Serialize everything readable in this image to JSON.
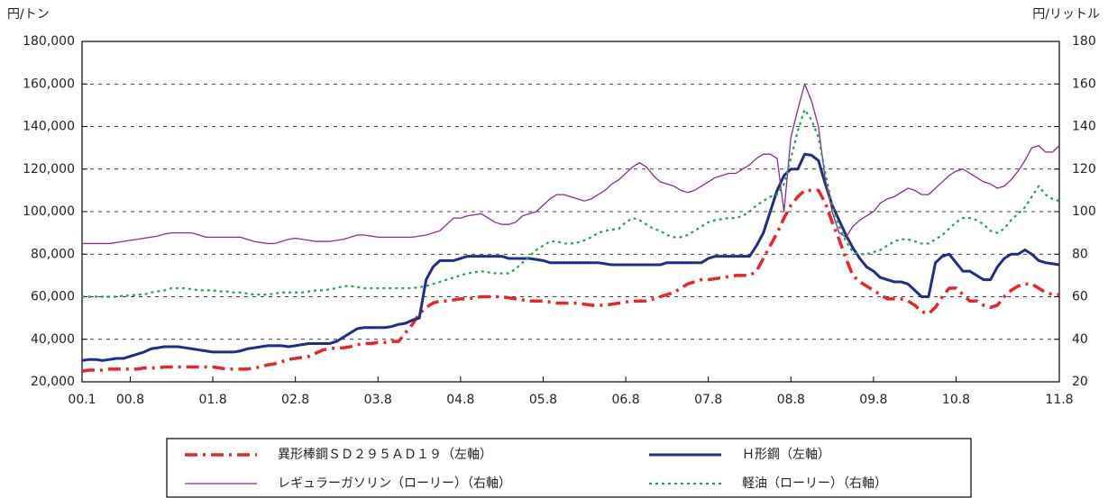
{
  "chart_data": {
    "type": "line",
    "ylabel": "円/トン",
    "y2label": "円/リットル",
    "categories": [
      "00.1",
      null,
      null,
      null,
      null,
      null,
      null,
      "00.8",
      null,
      null,
      null,
      null,
      null,
      null,
      null,
      null,
      null,
      null,
      null,
      "01.8",
      null,
      null,
      null,
      null,
      null,
      null,
      null,
      null,
      null,
      null,
      null,
      "02.8",
      null,
      null,
      null,
      null,
      null,
      null,
      null,
      null,
      null,
      null,
      null,
      "03.8",
      null,
      null,
      null,
      null,
      null,
      null,
      null,
      null,
      null,
      null,
      null,
      "04.8",
      null,
      null,
      null,
      null,
      null,
      null,
      null,
      null,
      null,
      null,
      null,
      "05.8",
      null,
      null,
      null,
      null,
      null,
      null,
      null,
      null,
      null,
      null,
      null,
      "06.8",
      null,
      null,
      null,
      null,
      null,
      null,
      null,
      null,
      null,
      null,
      null,
      "07.8",
      null,
      null,
      null,
      null,
      null,
      null,
      null,
      null,
      null,
      null,
      null,
      "08.8",
      null,
      null,
      null,
      null,
      null,
      null,
      null,
      null,
      null,
      null,
      null,
      "09.8",
      null,
      null,
      null,
      null,
      null,
      null,
      null,
      null,
      null,
      null,
      null,
      "10.8",
      null,
      null,
      null,
      null,
      null,
      null,
      null,
      null,
      null,
      null,
      null,
      null,
      null,
      null,
      "11.8"
    ],
    "ylim": [
      20000,
      180000
    ],
    "yticks": [
      {
        "value": 20000,
        "label": "20,000"
      },
      {
        "value": 40000,
        "label": "40,000"
      },
      {
        "value": 60000,
        "label": "60,000"
      },
      {
        "value": 80000,
        "label": "80,000"
      },
      {
        "value": 100000,
        "label": "100,000"
      },
      {
        "value": 120000,
        "label": "120,000"
      },
      {
        "value": 140000,
        "label": "140,000"
      },
      {
        "value": 160000,
        "label": "160,000"
      },
      {
        "value": 180000,
        "label": "180,000"
      }
    ],
    "y2lim": [
      20,
      180
    ],
    "y2ticks": [
      20,
      40,
      60,
      80,
      100,
      120,
      140,
      160,
      180
    ],
    "grid": true,
    "legend": "bottom",
    "series": [
      {
        "name": "異形棒鋼ＳＤ２９５ＡＤ１９（左軸）",
        "color": "#e8262a",
        "values": [
          25000,
          25500,
          25500,
          25500,
          26000,
          26000,
          26000,
          26000,
          26000,
          26500,
          26500,
          26500,
          27000,
          27000,
          27000,
          27000,
          27000,
          27000,
          27000,
          27000,
          26500,
          26000,
          26000,
          26000,
          26000,
          26500,
          27000,
          28000,
          28500,
          29500,
          30500,
          31000,
          31500,
          32000,
          33500,
          35000,
          35500,
          36000,
          36000,
          36500,
          37500,
          38000,
          38000,
          38500,
          38500,
          39000,
          39000,
          43000,
          47000,
          52000,
          55000,
          57000,
          58000,
          58000,
          58500,
          59000,
          59000,
          59500,
          60000,
          60000,
          60000,
          60000,
          59500,
          59000,
          58500,
          58000,
          58000,
          58000,
          57500,
          57000,
          57000,
          57000,
          57000,
          56500,
          56000,
          56000,
          56000,
          56500,
          57000,
          57500,
          58000,
          58000,
          58000,
          59000,
          60000,
          61000,
          62000,
          64000,
          66000,
          67000,
          68000,
          68000,
          68500,
          69000,
          69500,
          70000,
          70000,
          70000,
          72000,
          78000,
          84000,
          90000,
          97000,
          103000,
          107000,
          110000,
          110000,
          110000,
          104000,
          95000,
          87000,
          78000,
          70000,
          67000,
          65000,
          63000,
          61000,
          59000,
          59000,
          59000,
          58000,
          56000,
          53000,
          52000,
          55000,
          60000,
          64000,
          64000,
          61000,
          58000,
          58000,
          56000,
          55000,
          56000,
          60000,
          63000,
          65000,
          66000,
          66000,
          64000,
          62000,
          61000,
          61000
        ]
      },
      {
        "name": "Ｈ形鋼（左軸）",
        "color": "#1f2d86",
        "values": [
          30000,
          30500,
          30500,
          30000,
          30500,
          31000,
          31000,
          32000,
          33000,
          34000,
          35500,
          36000,
          36500,
          36500,
          36500,
          36000,
          35500,
          35000,
          34500,
          34000,
          34000,
          34000,
          34000,
          34500,
          35500,
          36000,
          36500,
          37000,
          37000,
          37000,
          36500,
          37000,
          37500,
          38000,
          38000,
          38000,
          38000,
          39000,
          41000,
          43000,
          45000,
          45500,
          45500,
          45500,
          45500,
          46000,
          47000,
          47500,
          49000,
          50000,
          68000,
          74000,
          77000,
          77000,
          77000,
          78000,
          79000,
          79000,
          79000,
          79000,
          79000,
          79000,
          78000,
          78000,
          78000,
          78000,
          77500,
          77000,
          76000,
          76000,
          76000,
          76000,
          76000,
          76000,
          76000,
          76000,
          75500,
          75000,
          75000,
          75000,
          75000,
          75000,
          75000,
          75000,
          75000,
          76000,
          76000,
          76000,
          76000,
          76000,
          76000,
          78000,
          79000,
          79000,
          79000,
          79000,
          79000,
          79000,
          84000,
          90000,
          100000,
          110000,
          117000,
          120000,
          120000,
          127000,
          126500,
          124000,
          113000,
          103000,
          96000,
          89000,
          83000,
          78000,
          74000,
          72000,
          69000,
          68000,
          67000,
          67000,
          66000,
          63000,
          60000,
          60000,
          76000,
          79000,
          80000,
          76000,
          72000,
          72000,
          70000,
          68000,
          68000,
          74000,
          78000,
          80000,
          80000,
          82000,
          80000,
          77000,
          76000,
          75500,
          75000
        ]
      },
      {
        "name": "レギュラーガソリン（ローリー）（右軸）",
        "color": "#8b2a8f",
        "axis": "y2",
        "values": [
          85,
          85,
          85,
          85,
          85,
          85.5,
          86,
          86.5,
          87,
          87.5,
          88,
          88.5,
          89.5,
          90,
          90,
          90,
          90,
          89,
          88,
          88,
          88,
          88,
          88,
          88,
          87,
          86,
          85.5,
          85,
          85,
          86,
          87,
          87.5,
          87,
          86.5,
          86,
          86,
          86,
          86.5,
          87,
          88,
          89,
          89,
          88.5,
          88,
          88,
          88,
          88,
          88,
          88,
          88.5,
          89,
          90,
          91,
          94,
          97,
          97,
          98,
          98.5,
          99,
          97,
          95,
          94,
          94,
          95,
          98,
          99,
          100,
          103,
          106,
          108,
          108,
          107,
          106,
          105,
          106,
          108,
          110,
          113,
          115,
          118,
          121,
          123,
          121,
          117,
          114,
          113,
          112,
          110,
          109,
          110,
          112,
          114,
          116,
          117,
          118,
          118,
          120,
          122,
          125,
          127,
          127,
          125,
          100,
          135,
          148,
          160,
          152,
          140,
          115,
          100,
          90,
          88,
          93,
          96,
          98,
          100,
          104,
          106,
          107,
          109,
          111,
          110,
          108,
          108,
          111,
          114,
          117,
          119,
          120,
          118,
          116,
          114,
          113,
          111,
          112,
          115,
          119,
          124,
          130,
          131,
          128,
          128,
          131
        ]
      },
      {
        "name": "軽油（ローリー）（右軸）",
        "color": "#1fa34a",
        "axis": "y2",
        "values": [
          60,
          60,
          60,
          60,
          60,
          60,
          60.5,
          60.5,
          61,
          61,
          62,
          62.5,
          63,
          64,
          64,
          64,
          63.5,
          63,
          63,
          63,
          62.5,
          62.5,
          62,
          62,
          61.5,
          61,
          61,
          61,
          61.5,
          62,
          62,
          62,
          62,
          62.5,
          63,
          63,
          63.5,
          64,
          65,
          65,
          64.5,
          64,
          64,
          64,
          64,
          64,
          64,
          64,
          64,
          64.5,
          65,
          66,
          67,
          68,
          69,
          70,
          71,
          71.5,
          72,
          71.5,
          71,
          71,
          71,
          73,
          76,
          79,
          82,
          84,
          86,
          86,
          85,
          85,
          85.5,
          86.5,
          88,
          90,
          91,
          91.5,
          92,
          95,
          97,
          96,
          94,
          92,
          91,
          89,
          88,
          88,
          89,
          91,
          93,
          95,
          96,
          96.5,
          97,
          97,
          98,
          100,
          103,
          105,
          107,
          108,
          113,
          125,
          138,
          148,
          143,
          135,
          118,
          103,
          93,
          86,
          81,
          80,
          80,
          81,
          82,
          84,
          86,
          87,
          87,
          86,
          85,
          85,
          87,
          89,
          92,
          95,
          97,
          97,
          96,
          94,
          91,
          90,
          92,
          96,
          99,
          102,
          107,
          112,
          108,
          106,
          105
        ]
      }
    ]
  }
}
